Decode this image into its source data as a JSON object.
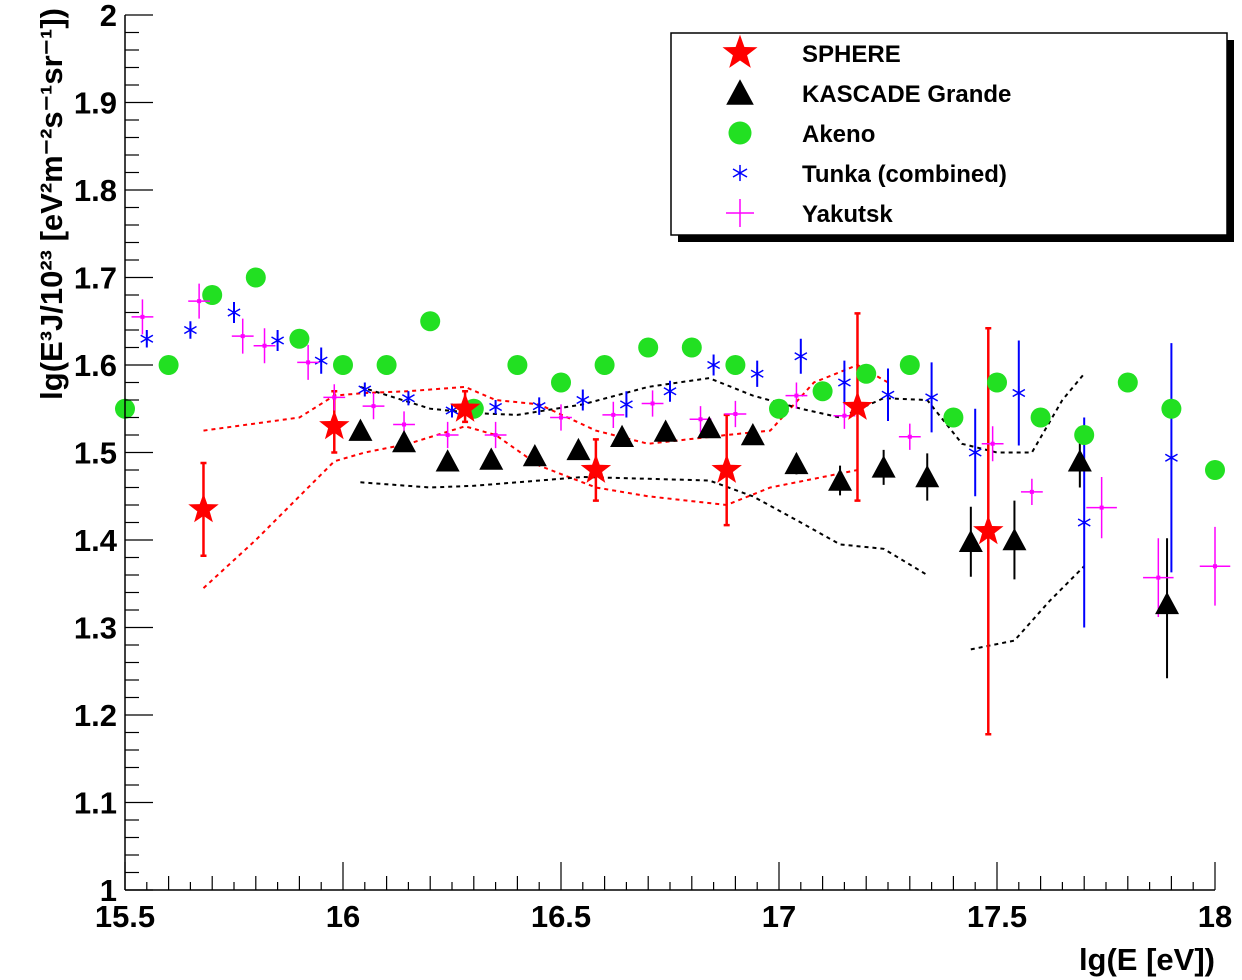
{
  "chart_data": {
    "type": "scatter",
    "title": "",
    "xlabel": "lg(E [eV])",
    "ylabel": "lg(E³J/10²³ [eV²m⁻²s⁻¹sr⁻¹])",
    "xlim": [
      15.5,
      18
    ],
    "ylim": [
      1,
      2
    ],
    "x_ticks": [
      "15.5",
      "16",
      "16.5",
      "17",
      "17.5",
      "18"
    ],
    "y_ticks": [
      "1",
      "1.1",
      "1.2",
      "1.3",
      "1.4",
      "1.5",
      "1.6",
      "1.7",
      "1.8",
      "1.9",
      "2"
    ],
    "grid": false,
    "legend_position": "top-right",
    "series": [
      {
        "name": "SPHERE",
        "marker": "star",
        "color": "#ff0000",
        "points": [
          {
            "x": 15.68,
            "y": 1.435,
            "err_lo": 0.053,
            "err_hi": 0.053
          },
          {
            "x": 15.98,
            "y": 1.53,
            "err_lo": 0.03,
            "err_hi": 0.04
          },
          {
            "x": 16.28,
            "y": 1.55,
            "err_lo": 0.015,
            "err_hi": 0.02
          },
          {
            "x": 16.58,
            "y": 1.48,
            "err_lo": 0.035,
            "err_hi": 0.035
          },
          {
            "x": 16.88,
            "y": 1.48,
            "err_lo": 0.063,
            "err_hi": 0.063
          },
          {
            "x": 17.18,
            "y": 1.552,
            "err_lo": 0.107,
            "err_hi": 0.107
          },
          {
            "x": 17.48,
            "y": 1.41,
            "err_lo": 0.232,
            "err_hi": 0.232
          }
        ]
      },
      {
        "name": "KASCADE Grande",
        "marker": "triangle",
        "color": "#000000",
        "points": [
          {
            "x": 16.04,
            "y": 1.525,
            "err_lo": 0.005,
            "err_hi": 0.005
          },
          {
            "x": 16.14,
            "y": 1.512,
            "err_lo": 0.005,
            "err_hi": 0.005
          },
          {
            "x": 16.24,
            "y": 1.49,
            "err_lo": 0.005,
            "err_hi": 0.005
          },
          {
            "x": 16.34,
            "y": 1.492,
            "err_lo": 0.005,
            "err_hi": 0.005
          },
          {
            "x": 16.44,
            "y": 1.496,
            "err_lo": 0.005,
            "err_hi": 0.005
          },
          {
            "x": 16.54,
            "y": 1.503,
            "err_lo": 0.005,
            "err_hi": 0.005
          },
          {
            "x": 16.64,
            "y": 1.518,
            "err_lo": 0.005,
            "err_hi": 0.005
          },
          {
            "x": 16.74,
            "y": 1.524,
            "err_lo": 0.005,
            "err_hi": 0.005
          },
          {
            "x": 16.84,
            "y": 1.528,
            "err_lo": 0.008,
            "err_hi": 0.008
          },
          {
            "x": 16.94,
            "y": 1.52,
            "err_lo": 0.01,
            "err_hi": 0.01
          },
          {
            "x": 17.04,
            "y": 1.487,
            "err_lo": 0.012,
            "err_hi": 0.012
          },
          {
            "x": 17.14,
            "y": 1.468,
            "err_lo": 0.017,
            "err_hi": 0.017
          },
          {
            "x": 17.24,
            "y": 1.483,
            "err_lo": 0.02,
            "err_hi": 0.02
          },
          {
            "x": 17.34,
            "y": 1.472,
            "err_lo": 0.027,
            "err_hi": 0.027
          },
          {
            "x": 17.44,
            "y": 1.398,
            "err_lo": 0.04,
            "err_hi": 0.04
          },
          {
            "x": 17.54,
            "y": 1.4,
            "err_lo": 0.045,
            "err_hi": 0.045
          },
          {
            "x": 17.69,
            "y": 1.49,
            "err_lo": 0.03,
            "err_hi": 0.03
          },
          {
            "x": 17.89,
            "y": 1.327,
            "err_lo": 0.085,
            "err_hi": 0.075
          }
        ]
      },
      {
        "name": "Akeno",
        "marker": "circle",
        "color": "#22e022",
        "points": [
          {
            "x": 15.5,
            "y": 1.55
          },
          {
            "x": 15.6,
            "y": 1.6
          },
          {
            "x": 15.7,
            "y": 1.68
          },
          {
            "x": 15.8,
            "y": 1.7
          },
          {
            "x": 15.9,
            "y": 1.63
          },
          {
            "x": 16.0,
            "y": 1.6
          },
          {
            "x": 16.1,
            "y": 1.6
          },
          {
            "x": 16.2,
            "y": 1.65
          },
          {
            "x": 16.3,
            "y": 1.55
          },
          {
            "x": 16.4,
            "y": 1.6
          },
          {
            "x": 16.5,
            "y": 1.58
          },
          {
            "x": 16.6,
            "y": 1.6
          },
          {
            "x": 16.7,
            "y": 1.62
          },
          {
            "x": 16.8,
            "y": 1.62
          },
          {
            "x": 16.9,
            "y": 1.6
          },
          {
            "x": 17.0,
            "y": 1.55
          },
          {
            "x": 17.1,
            "y": 1.57
          },
          {
            "x": 17.2,
            "y": 1.59
          },
          {
            "x": 17.3,
            "y": 1.6
          },
          {
            "x": 17.4,
            "y": 1.54
          },
          {
            "x": 17.5,
            "y": 1.58
          },
          {
            "x": 17.6,
            "y": 1.54
          },
          {
            "x": 17.7,
            "y": 1.52
          },
          {
            "x": 17.8,
            "y": 1.58
          },
          {
            "x": 17.9,
            "y": 1.55
          },
          {
            "x": 18.0,
            "y": 1.48
          }
        ]
      },
      {
        "name": "Tunka (combined)",
        "marker": "asterisk",
        "color": "#0000ff",
        "points": [
          {
            "x": 15.55,
            "y": 1.63,
            "err_lo": 0.01,
            "err_hi": 0.01
          },
          {
            "x": 15.65,
            "y": 1.64,
            "err_lo": 0.01,
            "err_hi": 0.01
          },
          {
            "x": 15.75,
            "y": 1.66,
            "err_lo": 0.012,
            "err_hi": 0.012
          },
          {
            "x": 15.85,
            "y": 1.628,
            "err_lo": 0.012,
            "err_hi": 0.012
          },
          {
            "x": 15.95,
            "y": 1.605,
            "err_lo": 0.015,
            "err_hi": 0.015
          },
          {
            "x": 16.05,
            "y": 1.572,
            "err_lo": 0.008,
            "err_hi": 0.008
          },
          {
            "x": 16.15,
            "y": 1.562,
            "err_lo": 0.008,
            "err_hi": 0.008
          },
          {
            "x": 16.25,
            "y": 1.548,
            "err_lo": 0.008,
            "err_hi": 0.008
          },
          {
            "x": 16.35,
            "y": 1.552,
            "err_lo": 0.008,
            "err_hi": 0.008
          },
          {
            "x": 16.45,
            "y": 1.553,
            "err_lo": 0.01,
            "err_hi": 0.01
          },
          {
            "x": 16.55,
            "y": 1.56,
            "err_lo": 0.012,
            "err_hi": 0.012
          },
          {
            "x": 16.65,
            "y": 1.555,
            "err_lo": 0.015,
            "err_hi": 0.015
          },
          {
            "x": 16.75,
            "y": 1.57,
            "err_lo": 0.012,
            "err_hi": 0.012
          },
          {
            "x": 16.85,
            "y": 1.6,
            "err_lo": 0.012,
            "err_hi": 0.012
          },
          {
            "x": 16.95,
            "y": 1.59,
            "err_lo": 0.015,
            "err_hi": 0.015
          },
          {
            "x": 17.05,
            "y": 1.61,
            "err_lo": 0.02,
            "err_hi": 0.02
          },
          {
            "x": 17.15,
            "y": 1.58,
            "err_lo": 0.025,
            "err_hi": 0.025
          },
          {
            "x": 17.25,
            "y": 1.566,
            "err_lo": 0.03,
            "err_hi": 0.03
          },
          {
            "x": 17.35,
            "y": 1.563,
            "err_lo": 0.04,
            "err_hi": 0.04
          },
          {
            "x": 17.45,
            "y": 1.5,
            "err_lo": 0.05,
            "err_hi": 0.05
          },
          {
            "x": 17.55,
            "y": 1.568,
            "err_lo": 0.06,
            "err_hi": 0.06
          },
          {
            "x": 17.7,
            "y": 1.42,
            "err_lo": 0.12,
            "err_hi": 0.12
          },
          {
            "x": 17.9,
            "y": 1.494,
            "err_lo": 0.131,
            "err_hi": 0.131
          }
        ]
      },
      {
        "name": "Yakutsk",
        "marker": "cross",
        "color": "#ff00ff",
        "points": [
          {
            "x": 15.54,
            "y": 1.655,
            "xerr": 0.025,
            "err_lo": 0.02,
            "err_hi": 0.02
          },
          {
            "x": 15.67,
            "y": 1.673,
            "xerr": 0.025,
            "err_lo": 0.02,
            "err_hi": 0.02
          },
          {
            "x": 15.77,
            "y": 1.633,
            "xerr": 0.025,
            "err_lo": 0.02,
            "err_hi": 0.02
          },
          {
            "x": 15.82,
            "y": 1.622,
            "xerr": 0.025,
            "err_lo": 0.02,
            "err_hi": 0.02
          },
          {
            "x": 15.92,
            "y": 1.603,
            "xerr": 0.025,
            "err_lo": 0.02,
            "err_hi": 0.02
          },
          {
            "x": 15.98,
            "y": 1.563,
            "xerr": 0.025,
            "err_lo": 0.015,
            "err_hi": 0.015
          },
          {
            "x": 16.07,
            "y": 1.553,
            "xerr": 0.025,
            "err_lo": 0.015,
            "err_hi": 0.015
          },
          {
            "x": 16.14,
            "y": 1.532,
            "xerr": 0.025,
            "err_lo": 0.015,
            "err_hi": 0.015
          },
          {
            "x": 16.24,
            "y": 1.52,
            "xerr": 0.025,
            "err_lo": 0.015,
            "err_hi": 0.015
          },
          {
            "x": 16.35,
            "y": 1.52,
            "xerr": 0.025,
            "err_lo": 0.015,
            "err_hi": 0.015
          },
          {
            "x": 16.5,
            "y": 1.54,
            "xerr": 0.025,
            "err_lo": 0.015,
            "err_hi": 0.015
          },
          {
            "x": 16.62,
            "y": 1.543,
            "xerr": 0.025,
            "err_lo": 0.015,
            "err_hi": 0.015
          },
          {
            "x": 16.71,
            "y": 1.556,
            "xerr": 0.025,
            "err_lo": 0.015,
            "err_hi": 0.015
          },
          {
            "x": 16.82,
            "y": 1.538,
            "xerr": 0.025,
            "err_lo": 0.015,
            "err_hi": 0.015
          },
          {
            "x": 16.9,
            "y": 1.544,
            "xerr": 0.025,
            "err_lo": 0.015,
            "err_hi": 0.015
          },
          {
            "x": 17.04,
            "y": 1.565,
            "xerr": 0.025,
            "err_lo": 0.015,
            "err_hi": 0.015
          },
          {
            "x": 17.15,
            "y": 1.542,
            "xerr": 0.025,
            "err_lo": 0.015,
            "err_hi": 0.015
          },
          {
            "x": 17.3,
            "y": 1.518,
            "xerr": 0.025,
            "err_lo": 0.015,
            "err_hi": 0.015
          },
          {
            "x": 17.49,
            "y": 1.51,
            "xerr": 0.025,
            "err_lo": 0.02,
            "err_hi": 0.02
          },
          {
            "x": 17.58,
            "y": 1.455,
            "xerr": 0.025,
            "err_lo": 0.015,
            "err_hi": 0.015
          },
          {
            "x": 17.74,
            "y": 1.437,
            "xerr": 0.035,
            "err_lo": 0.035,
            "err_hi": 0.035
          },
          {
            "x": 17.87,
            "y": 1.357,
            "xerr": 0.035,
            "err_lo": 0.045,
            "err_hi": 0.045
          },
          {
            "x": 18.0,
            "y": 1.37,
            "xerr": 0.035,
            "err_lo": 0.045,
            "err_hi": 0.045
          }
        ]
      }
    ],
    "bands": [
      {
        "color": "#ff0000",
        "lines": [
          [
            [
              15.68,
              1.525
            ],
            [
              15.9,
              1.54
            ],
            [
              15.98,
              1.565
            ],
            [
              16.05,
              1.568
            ],
            [
              16.15,
              1.57
            ],
            [
              16.28,
              1.575
            ],
            [
              16.35,
              1.56
            ],
            [
              16.45,
              1.555
            ],
            [
              16.58,
              1.525
            ],
            [
              16.7,
              1.51
            ],
            [
              16.88,
              1.52
            ],
            [
              16.98,
              1.525
            ],
            [
              17.08,
              1.58
            ],
            [
              17.18,
              1.6
            ],
            [
              17.25,
              1.58
            ]
          ],
          [
            [
              15.68,
              1.345
            ],
            [
              15.8,
              1.4
            ],
            [
              15.98,
              1.49
            ],
            [
              16.05,
              1.5
            ],
            [
              16.15,
              1.51
            ],
            [
              16.28,
              1.53
            ],
            [
              16.35,
              1.52
            ],
            [
              16.45,
              1.485
            ],
            [
              16.58,
              1.46
            ],
            [
              16.7,
              1.45
            ],
            [
              16.88,
              1.44
            ],
            [
              16.98,
              1.46
            ],
            [
              17.08,
              1.47
            ],
            [
              17.18,
              1.48
            ]
          ]
        ]
      },
      {
        "color": "#000000",
        "lines": [
          [
            [
              16.04,
              1.575
            ],
            [
              16.2,
              1.55
            ],
            [
              16.3,
              1.545
            ],
            [
              16.4,
              1.543
            ],
            [
              16.55,
              1.555
            ],
            [
              16.7,
              1.575
            ],
            [
              16.84,
              1.585
            ],
            [
              16.94,
              1.565
            ],
            [
              17.05,
              1.55
            ],
            [
              17.14,
              1.54
            ],
            [
              17.24,
              1.562
            ],
            [
              17.34,
              1.56
            ],
            [
              17.42,
              1.51
            ],
            [
              17.5,
              1.5
            ],
            [
              17.58,
              1.5
            ],
            [
              17.65,
              1.56
            ],
            [
              17.7,
              1.59
            ]
          ],
          [
            [
              16.04,
              1.466
            ],
            [
              16.2,
              1.46
            ],
            [
              16.3,
              1.462
            ],
            [
              16.4,
              1.466
            ],
            [
              16.55,
              1.472
            ],
            [
              16.7,
              1.47
            ],
            [
              16.84,
              1.468
            ],
            [
              16.94,
              1.45
            ],
            [
              17.05,
              1.42
            ],
            [
              17.14,
              1.395
            ],
            [
              17.24,
              1.39
            ],
            [
              17.34,
              1.36
            ]
          ],
          [
            [
              17.44,
              1.275
            ],
            [
              17.54,
              1.285
            ],
            [
              17.62,
              1.33
            ],
            [
              17.7,
              1.37
            ]
          ]
        ]
      }
    ]
  }
}
